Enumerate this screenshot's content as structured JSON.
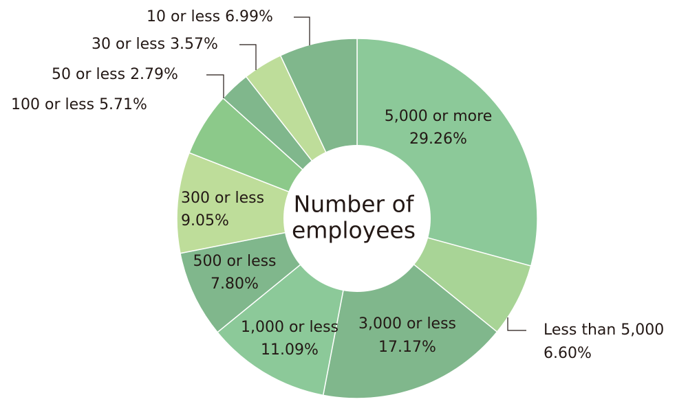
{
  "chart_data": {
    "type": "donut",
    "center_label": [
      "Number of",
      "employees"
    ],
    "categories": [
      "5,000 or more",
      "Less than 5,000",
      "3,000 or less",
      "1,000 or less",
      "500 or less",
      "300 or less",
      "100 or less",
      "50 or less",
      "30 or less",
      "10 or less"
    ],
    "values": [
      29.26,
      6.6,
      17.17,
      11.09,
      7.8,
      9.05,
      5.71,
      2.79,
      3.57,
      6.99
    ],
    "value_labels": [
      "29.26%",
      "6.60%",
      "17.17%",
      "11.09%",
      "7.80%",
      "9.05%",
      "5.71%",
      "2.79%",
      "3.57%",
      "6.99%"
    ],
    "colors": [
      "#8cc999",
      "#a8d496",
      "#80b78c",
      "#8cc999",
      "#80b78c",
      "#bedd9a",
      "#8cc98a",
      "#80b78c",
      "#bedd9a",
      "#80b78c"
    ]
  }
}
